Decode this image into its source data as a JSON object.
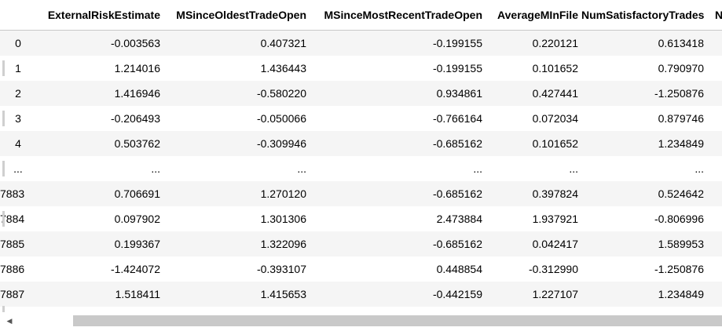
{
  "table": {
    "index_header": "",
    "columns": [
      "ExternalRiskEstimate",
      "MSinceOldestTradeOpen",
      "MSinceMostRecentTradeOpen",
      "AverageMInFile",
      "NumSatisfactoryTrades",
      "N"
    ],
    "rows": [
      {
        "index": "0",
        "values": [
          "-0.003563",
          "0.407321",
          "-0.199155",
          "0.220121",
          "0.613418",
          ""
        ]
      },
      {
        "index": "1",
        "values": [
          "1.214016",
          "1.436443",
          "-0.199155",
          "0.101652",
          "0.790970",
          ""
        ]
      },
      {
        "index": "2",
        "values": [
          "1.416946",
          "-0.580220",
          "0.934861",
          "0.427441",
          "-1.250876",
          ""
        ]
      },
      {
        "index": "3",
        "values": [
          "-0.206493",
          "-0.050066",
          "-0.766164",
          "0.072034",
          "0.879746",
          ""
        ]
      },
      {
        "index": "4",
        "values": [
          "0.503762",
          "-0.309946",
          "-0.685162",
          "0.101652",
          "1.234849",
          ""
        ]
      },
      {
        "index": "...",
        "values": [
          "...",
          "...",
          "...",
          "...",
          "...",
          ""
        ]
      },
      {
        "index": "7883",
        "values": [
          "0.706691",
          "1.270120",
          "-0.685162",
          "0.397824",
          "0.524642",
          ""
        ]
      },
      {
        "index": "7884",
        "values": [
          "0.097902",
          "1.301306",
          "2.473884",
          "1.937921",
          "-0.806996",
          ""
        ]
      },
      {
        "index": "7885",
        "values": [
          "0.199367",
          "1.322096",
          "-0.685162",
          "0.042417",
          "1.589953",
          ""
        ]
      },
      {
        "index": "7886",
        "values": [
          "-1.424072",
          "-0.393107",
          "0.448854",
          "-0.312990",
          "-1.250876",
          ""
        ]
      },
      {
        "index": "7887",
        "values": [
          "1.518411",
          "1.415653",
          "-0.442159",
          "1.227107",
          "1.234849",
          ""
        ]
      }
    ]
  },
  "scrollbar": {
    "left_arrow": "◀"
  }
}
